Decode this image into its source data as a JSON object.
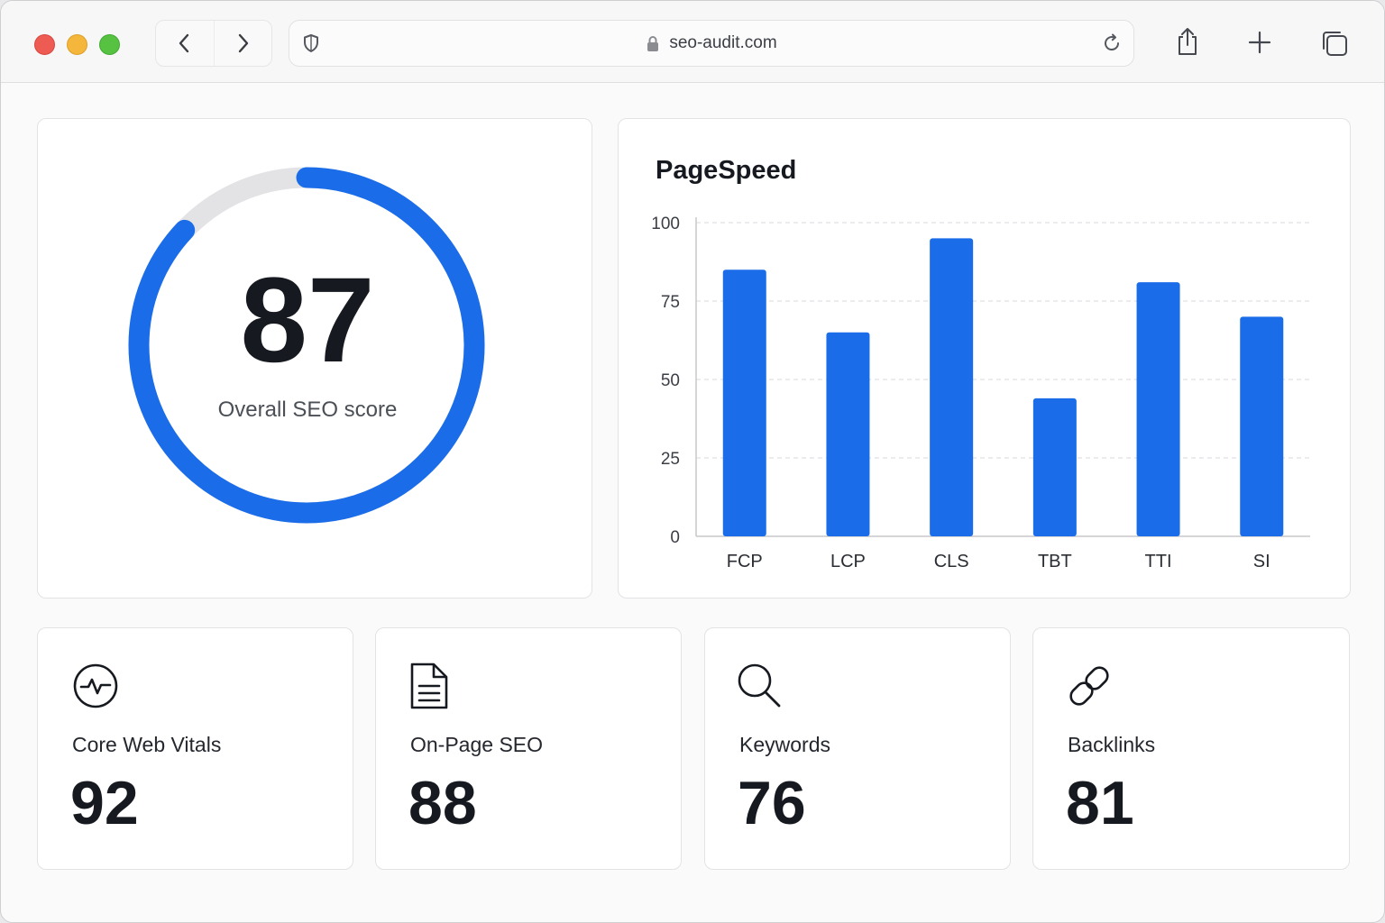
{
  "browser": {
    "url": "seo-audit.com",
    "icons": [
      "back-icon",
      "forward-icon",
      "shield-icon",
      "lock-icon",
      "reload-icon",
      "share-icon",
      "new-tab-icon",
      "tabs-overview-icon"
    ]
  },
  "score": {
    "value": "87",
    "label": "Overall SEO score",
    "progress": 0.87,
    "accent": "#1a6ce8"
  },
  "chart_data": {
    "type": "bar",
    "title": "PageSpeed",
    "categories": [
      "FCP",
      "LCP",
      "CLS",
      "TBT",
      "TTI",
      "SI"
    ],
    "values": [
      85,
      65,
      95,
      44,
      81,
      70
    ],
    "yticks": [
      "0",
      "25",
      "50",
      "75",
      "100"
    ],
    "ylim": [
      0,
      100
    ],
    "grid": true,
    "color": "#1a6ce8"
  },
  "stats": [
    {
      "label": "Core Web Vitals",
      "value": "92",
      "icon": "activity-icon"
    },
    {
      "label": "On-Page SEO",
      "value": "88",
      "icon": "document-icon"
    },
    {
      "label": "Keywords",
      "value": "76",
      "icon": "search-icon"
    },
    {
      "label": "Backlinks",
      "value": "81",
      "icon": "link-icon"
    }
  ]
}
